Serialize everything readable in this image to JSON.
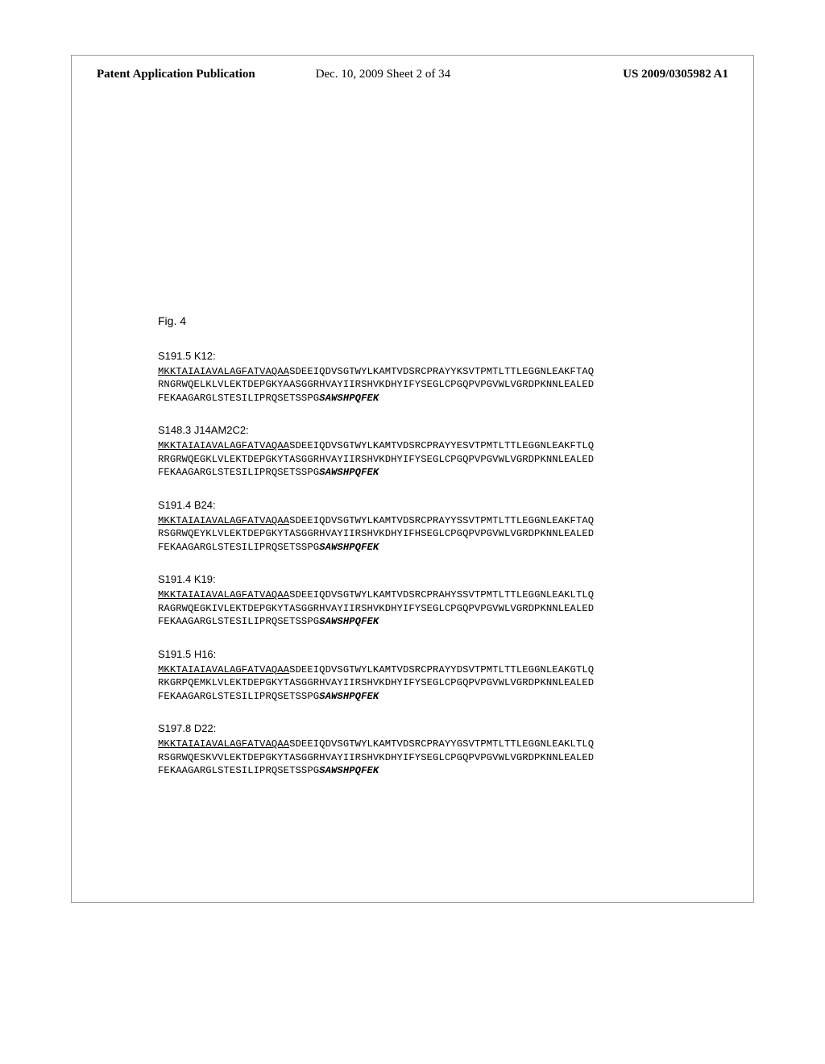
{
  "header": {
    "left": "Patent Application Publication",
    "center": "Dec. 10, 2009  Sheet 2 of 34",
    "right": "US 2009/0305982 A1"
  },
  "figure_label": "Fig. 4",
  "sequences": [
    {
      "label": "S191.5 K12:",
      "line1_under": "MKKTAIAIAVALAGFATVAQAA",
      "line1_rest": "SDEEIQDVSGTWYLKAMTVDSRCPRAYYKSVTPMTLTTLEGGNLEAKFTAQ",
      "line2": "RNGRWQELKLVLEKTDEPGKYAASGGRHVAYIIRSHVKDHYIFYSEGLCPGQPVPGVWLVGRDPKNNLEALED",
      "line3_plain": "FEKAAGARGLSTESILIPRQSETSSPG",
      "line3_bold": "SAWSHPQFEK"
    },
    {
      "label": "S148.3 J14AM2C2:",
      "line1_under": "MKKTAIAIAVALAGFATVAQAA",
      "line1_rest": "SDEEIQDVSGTWYLKAMTVDSRCPRAYYESVTPMTLTTLEGGNLEAKFTLQ",
      "line2": "RRGRWQEGKLVLEKTDEPGKYTASGGRHVAYIIRSHVKDHYIFYSEGLCPGQPVPGVWLVGRDPKNNLEALED",
      "line3_plain": "FEKAAGARGLSTESILIPRQSETSSPG",
      "line3_bold": "SAWSHPQFEK"
    },
    {
      "label": "S191.4 B24:",
      "line1_under": "MKKTAIAIAVALAGFATVAQAA",
      "line1_rest": "SDEEIQDVSGTWYLKAMTVDSRCPRAYYSSVTPMTLTTLEGGNLEAKFTAQ",
      "line2": "RSGRWQEYKLVLEKTDEPGKYTASGGRHVAYIIRSHVKDHYIFHSEGLCPGQPVPGVWLVGRDPKNNLEALED",
      "line3_plain": "FEKAAGARGLSTESILIPRQSETSSPG",
      "line3_bold": "SAWSHPQFEK"
    },
    {
      "label": "S191.4 K19:",
      "line1_under": "MKKTAIAIAVALAGFATVAQAA",
      "line1_rest": "SDEEIQDVSGTWYLKAMTVDSRCPRAHYSSVTPMTLTTLEGGNLEAKLTLQ",
      "line2": "RAGRWQEGKIVLEKTDEPGKYTASGGRHVAYIIRSHVKDHYIFYSEGLCPGQPVPGVWLVGRDPKNNLEALED",
      "line3_plain": "FEKAAGARGLSTESILIPRQSETSSPG",
      "line3_bold": "SAWSHPQFEK"
    },
    {
      "label": "S191.5 H16:",
      "line1_under": "MKKTAIAIAVALAGFATVAQAA",
      "line1_rest": "SDEEIQDVSGTWYLKAMTVDSRCPRAYYDSVTPMTLTTLEGGNLEAKGTLQ",
      "line2": "RKGRPQEMKLVLEKTDEPGKYTASGGRHVAYIIRSHVKDHYIFYSEGLCPGQPVPGVWLVGRDPKNNLEALED",
      "line3_plain": "FEKAAGARGLSTESILIPRQSETSSPG",
      "line3_bold": "SAWSHPQFEK"
    },
    {
      "label": "S197.8 D22:",
      "line1_under": "MKKTAIAIAVALAGFATVAQAA",
      "line1_rest": "SDEEIQDVSGTWYLKAMTVDSRCPRAYYGSVTPMTLTTLEGGNLEAKLTLQ",
      "line2": "RSGRWQESKVVLEKTDEPGKYTASGGRHVAYIIRSHVKDHYIFYSEGLCPGQPVPGVWLVGRDPKNNLEALED",
      "line3_plain": "FEKAAGARGLSTESILIPRQSETSSPG",
      "line3_bold": "SAWSHPQFEK"
    }
  ]
}
